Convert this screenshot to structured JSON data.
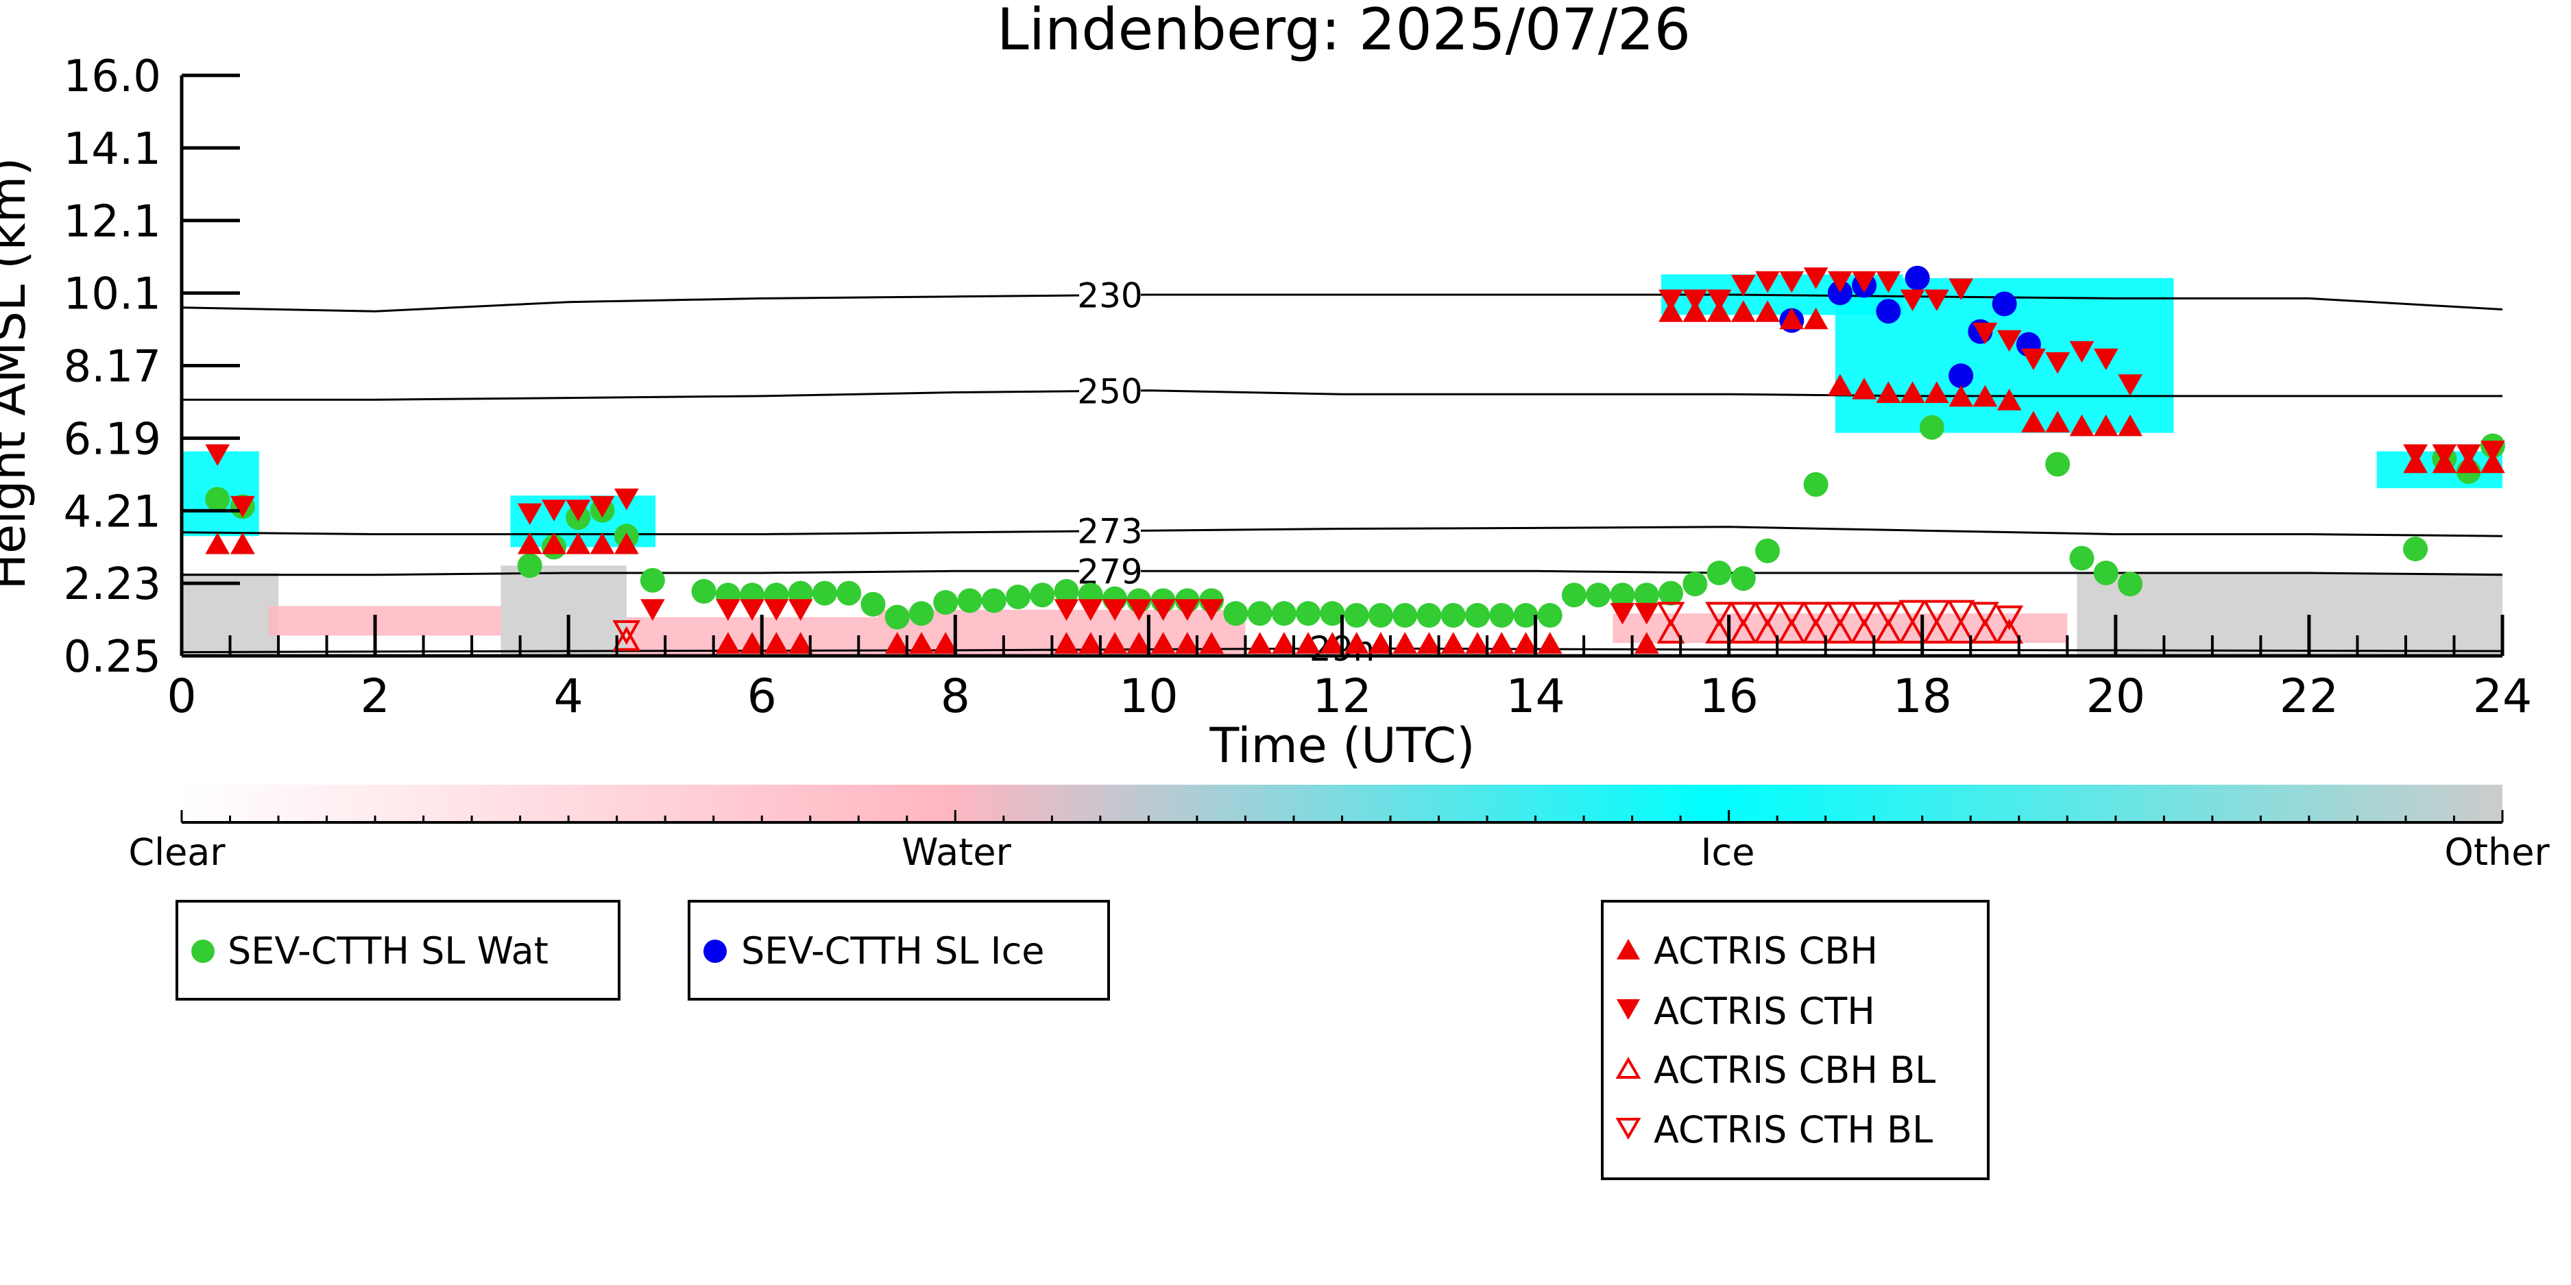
{
  "chart_data": {
    "type": "scatter",
    "title": "Lindenberg: 2025/07/26",
    "xlabel": "Time (UTC)",
    "ylabel": "Height AMSL (km)",
    "xlim": [
      0,
      24
    ],
    "ylim": [
      0.25,
      16.0
    ],
    "x_ticks": [
      "0",
      "2",
      "4",
      "6",
      "8",
      "10",
      "12",
      "14",
      "16",
      "18",
      "20",
      "22",
      "24"
    ],
    "y_ticks": [
      "0.25",
      "2.23",
      "4.21",
      "6.19",
      "8.17",
      "10.1",
      "12.1",
      "14.1",
      "16.0"
    ],
    "isotherms": [
      {
        "label": "230",
        "label_x": 9.6,
        "points": [
          [
            0,
            9.7
          ],
          [
            2,
            9.6
          ],
          [
            4,
            9.85
          ],
          [
            6,
            9.95
          ],
          [
            8,
            10.0
          ],
          [
            10,
            10.05
          ],
          [
            12,
            10.05
          ],
          [
            14,
            10.05
          ],
          [
            16,
            10.05
          ],
          [
            18,
            10.0
          ],
          [
            20,
            9.95
          ],
          [
            22,
            9.95
          ],
          [
            24,
            9.65
          ]
        ]
      },
      {
        "label": "250",
        "label_x": 9.6,
        "points": [
          [
            0,
            7.2
          ],
          [
            2,
            7.2
          ],
          [
            4,
            7.25
          ],
          [
            6,
            7.3
          ],
          [
            8,
            7.4
          ],
          [
            10,
            7.45
          ],
          [
            12,
            7.35
          ],
          [
            14,
            7.35
          ],
          [
            16,
            7.35
          ],
          [
            18,
            7.3
          ],
          [
            20,
            7.3
          ],
          [
            22,
            7.3
          ],
          [
            24,
            7.3
          ]
        ]
      },
      {
        "label": "273",
        "label_x": 9.6,
        "points": [
          [
            0,
            3.6
          ],
          [
            2,
            3.55
          ],
          [
            4,
            3.55
          ],
          [
            6,
            3.55
          ],
          [
            8,
            3.6
          ],
          [
            10,
            3.65
          ],
          [
            12,
            3.7
          ],
          [
            14,
            3.72
          ],
          [
            16,
            3.75
          ],
          [
            18,
            3.65
          ],
          [
            20,
            3.55
          ],
          [
            22,
            3.55
          ],
          [
            24,
            3.5
          ]
        ]
      },
      {
        "label": "279",
        "label_x": 9.6,
        "points": [
          [
            0,
            2.45
          ],
          [
            2,
            2.45
          ],
          [
            4,
            2.5
          ],
          [
            6,
            2.5
          ],
          [
            8,
            2.55
          ],
          [
            10,
            2.55
          ],
          [
            12,
            2.55
          ],
          [
            14,
            2.55
          ],
          [
            16,
            2.5
          ],
          [
            18,
            2.5
          ],
          [
            20,
            2.5
          ],
          [
            22,
            2.5
          ],
          [
            24,
            2.45
          ]
        ]
      },
      {
        "label": "29n",
        "label_x": 12.0,
        "points": [
          [
            0,
            0.35
          ],
          [
            4,
            0.38
          ],
          [
            8,
            0.4
          ],
          [
            12,
            0.45
          ],
          [
            16,
            0.42
          ],
          [
            20,
            0.4
          ],
          [
            24,
            0.38
          ]
        ]
      }
    ],
    "classification_colorbar": {
      "labels": [
        "Clear",
        "Water",
        "Ice",
        "Other"
      ],
      "colors": {
        "clear": "#ffffff",
        "water": "#ffb6c1",
        "ice": "#00ffff",
        "other": "#cccccc"
      }
    },
    "cloud_regions": [
      {
        "class": "ice",
        "x0": 0.0,
        "x1": 0.8,
        "y0": 3.5,
        "y1": 5.8
      },
      {
        "class": "ice",
        "x0": 3.4,
        "x1": 4.9,
        "y0": 3.2,
        "y1": 4.6
      },
      {
        "class": "ice",
        "x0": 15.3,
        "x1": 17.8,
        "y0": 9.5,
        "y1": 10.6
      },
      {
        "class": "ice",
        "x0": 17.1,
        "x1": 20.6,
        "y0": 6.3,
        "y1": 10.5
      },
      {
        "class": "ice",
        "x0": 22.7,
        "x1": 24.0,
        "y0": 4.8,
        "y1": 5.8
      },
      {
        "class": "other",
        "x0": 0.0,
        "x1": 1.0,
        "y0": 0.25,
        "y1": 2.5
      },
      {
        "class": "other",
        "x0": 3.3,
        "x1": 4.6,
        "y0": 0.25,
        "y1": 2.7
      },
      {
        "class": "water",
        "x0": 0.9,
        "x1": 3.3,
        "y0": 0.8,
        "y1": 1.6
      },
      {
        "class": "water",
        "x0": 4.6,
        "x1": 7.2,
        "y0": 0.25,
        "y1": 1.3
      },
      {
        "class": "water",
        "x0": 7.2,
        "x1": 11.0,
        "y0": 0.25,
        "y1": 1.5
      },
      {
        "class": "water",
        "x0": 14.8,
        "x1": 19.5,
        "y0": 0.6,
        "y1": 1.4
      },
      {
        "class": "other",
        "x0": 19.6,
        "x1": 24.0,
        "y0": 0.25,
        "y1": 2.5
      }
    ],
    "series": [
      {
        "name": "SEV-CTTH SL Wat",
        "marker": "circle",
        "color": "#33cc33",
        "x": [
          0.37,
          0.63,
          3.6,
          3.85,
          4.1,
          4.35,
          4.6,
          4.87,
          5.4,
          5.65,
          5.9,
          6.15,
          6.4,
          6.65,
          6.9,
          7.15,
          7.4,
          7.65,
          7.9,
          8.15,
          8.4,
          8.65,
          8.9,
          9.15,
          9.4,
          9.65,
          9.9,
          10.15,
          10.4,
          10.65,
          10.9,
          11.15,
          11.4,
          11.65,
          11.9,
          12.15,
          12.4,
          12.65,
          12.9,
          13.15,
          13.4,
          13.65,
          13.9,
          14.15,
          14.4,
          14.65,
          14.9,
          15.15,
          15.4,
          15.65,
          15.9,
          16.15,
          16.4,
          16.9,
          18.1,
          19.4,
          19.65,
          19.9,
          20.15,
          23.1,
          23.4,
          23.65,
          23.9
        ],
        "y": [
          4.5,
          4.3,
          2.7,
          3.2,
          4.0,
          4.2,
          3.5,
          2.3,
          2.0,
          1.9,
          1.9,
          1.9,
          1.95,
          1.95,
          1.95,
          1.65,
          1.3,
          1.4,
          1.7,
          1.75,
          1.75,
          1.85,
          1.9,
          2.0,
          1.9,
          1.8,
          1.75,
          1.75,
          1.75,
          1.75,
          1.4,
          1.4,
          1.4,
          1.4,
          1.4,
          1.35,
          1.35,
          1.35,
          1.35,
          1.35,
          1.35,
          1.35,
          1.35,
          1.35,
          1.9,
          1.9,
          1.9,
          1.9,
          1.95,
          2.2,
          2.5,
          2.35,
          3.1,
          4.9,
          6.45,
          5.45,
          2.9,
          2.5,
          2.2,
          3.15,
          5.6,
          5.25,
          5.95
        ]
      },
      {
        "name": "SEV-CTTH SL Ice",
        "marker": "circle",
        "color": "#0000ee",
        "x": [
          16.65,
          17.15,
          17.4,
          17.65,
          17.95,
          18.4,
          18.6,
          18.85,
          19.1
        ],
        "y": [
          9.35,
          10.1,
          10.3,
          9.6,
          10.5,
          7.85,
          9.05,
          9.8,
          8.7
        ]
      },
      {
        "name": "ACTRIS CBH",
        "marker": "triangle-up",
        "filled": true,
        "color": "#ee0000",
        "x": [
          0.37,
          0.63,
          3.6,
          3.85,
          4.1,
          4.35,
          4.6,
          15.4,
          15.65,
          15.9,
          16.15,
          16.4,
          16.65,
          16.9,
          17.15,
          17.4,
          17.65,
          17.9,
          18.15,
          18.4,
          18.65,
          18.9,
          19.15,
          19.4,
          19.65,
          19.9,
          20.15,
          23.1,
          23.4,
          23.65,
          23.9,
          5.65,
          5.9,
          6.15,
          6.4,
          7.4,
          7.65,
          7.9,
          9.15,
          9.4,
          9.65,
          9.9,
          10.15,
          10.4,
          10.65,
          11.15,
          11.4,
          11.65,
          11.9,
          12.15,
          12.4,
          12.65,
          12.9,
          13.15,
          13.4,
          13.65,
          13.9,
          14.15,
          15.15
        ],
        "y": [
          3.3,
          3.3,
          3.3,
          3.3,
          3.3,
          3.3,
          3.3,
          9.6,
          9.6,
          9.6,
          9.6,
          9.6,
          9.4,
          9.4,
          7.6,
          7.5,
          7.4,
          7.4,
          7.4,
          7.3,
          7.3,
          7.2,
          6.6,
          6.6,
          6.5,
          6.5,
          6.5,
          5.5,
          5.5,
          5.5,
          5.5,
          0.6,
          0.6,
          0.6,
          0.6,
          0.6,
          0.6,
          0.6,
          0.6,
          0.6,
          0.6,
          0.6,
          0.6,
          0.6,
          0.6,
          0.6,
          0.6,
          0.6,
          0.6,
          0.6,
          0.6,
          0.6,
          0.6,
          0.6,
          0.6,
          0.6,
          0.6,
          0.6,
          0.6
        ]
      },
      {
        "name": "ACTRIS CTH",
        "marker": "triangle-down",
        "filled": true,
        "color": "#ee0000",
        "x": [
          0.37,
          0.63,
          3.6,
          3.85,
          4.1,
          4.35,
          4.6,
          4.87,
          15.4,
          15.65,
          15.9,
          16.15,
          16.4,
          16.65,
          16.9,
          17.15,
          17.4,
          17.65,
          17.9,
          18.15,
          18.4,
          18.65,
          18.9,
          19.15,
          19.4,
          19.65,
          19.9,
          20.15,
          23.1,
          23.4,
          23.65,
          23.9,
          5.65,
          5.9,
          6.15,
          6.4,
          9.15,
          9.4,
          9.65,
          9.9,
          10.15,
          10.4,
          10.65,
          14.9,
          15.15
        ],
        "y": [
          5.7,
          4.3,
          4.1,
          4.2,
          4.2,
          4.3,
          4.5,
          1.5,
          9.9,
          9.9,
          9.9,
          10.3,
          10.4,
          10.4,
          10.5,
          10.4,
          10.4,
          10.4,
          9.9,
          9.9,
          10.2,
          9.0,
          8.8,
          8.3,
          8.2,
          8.5,
          8.3,
          7.6,
          5.7,
          5.7,
          5.7,
          5.8,
          1.5,
          1.5,
          1.5,
          1.5,
          1.5,
          1.5,
          1.5,
          1.5,
          1.5,
          1.5,
          1.5,
          1.4,
          1.4
        ]
      },
      {
        "name": "ACTRIS CBH BL",
        "marker": "triangle-up",
        "filled": false,
        "color": "#ee0000",
        "x": [
          4.6,
          15.4,
          15.9,
          16.15,
          16.4,
          16.65,
          16.9,
          17.15,
          17.4,
          17.65,
          17.9,
          18.15,
          18.4,
          18.65,
          18.9
        ],
        "y": [
          0.7,
          0.9,
          0.9,
          0.9,
          0.9,
          0.9,
          0.9,
          0.9,
          0.9,
          0.9,
          0.9,
          0.9,
          0.9,
          0.9,
          0.9
        ]
      },
      {
        "name": "ACTRIS CTH BL",
        "marker": "triangle-down",
        "filled": false,
        "color": "#ee0000",
        "x": [
          4.6,
          15.4,
          15.9,
          16.15,
          16.4,
          16.65,
          16.9,
          17.15,
          17.4,
          17.65,
          17.9,
          18.15,
          18.4,
          18.65,
          18.9
        ],
        "y": [
          0.9,
          1.4,
          1.4,
          1.4,
          1.4,
          1.4,
          1.4,
          1.4,
          1.4,
          1.4,
          1.45,
          1.45,
          1.45,
          1.4,
          1.3
        ]
      }
    ],
    "legends": [
      {
        "entries": [
          "SEV-CTTH SL Wat"
        ]
      },
      {
        "entries": [
          "SEV-CTTH SL Ice"
        ]
      },
      {
        "entries": [
          "ACTRIS CBH",
          "ACTRIS CTH",
          "ACTRIS CBH BL",
          "ACTRIS CTH BL"
        ]
      }
    ],
    "grid": false
  }
}
